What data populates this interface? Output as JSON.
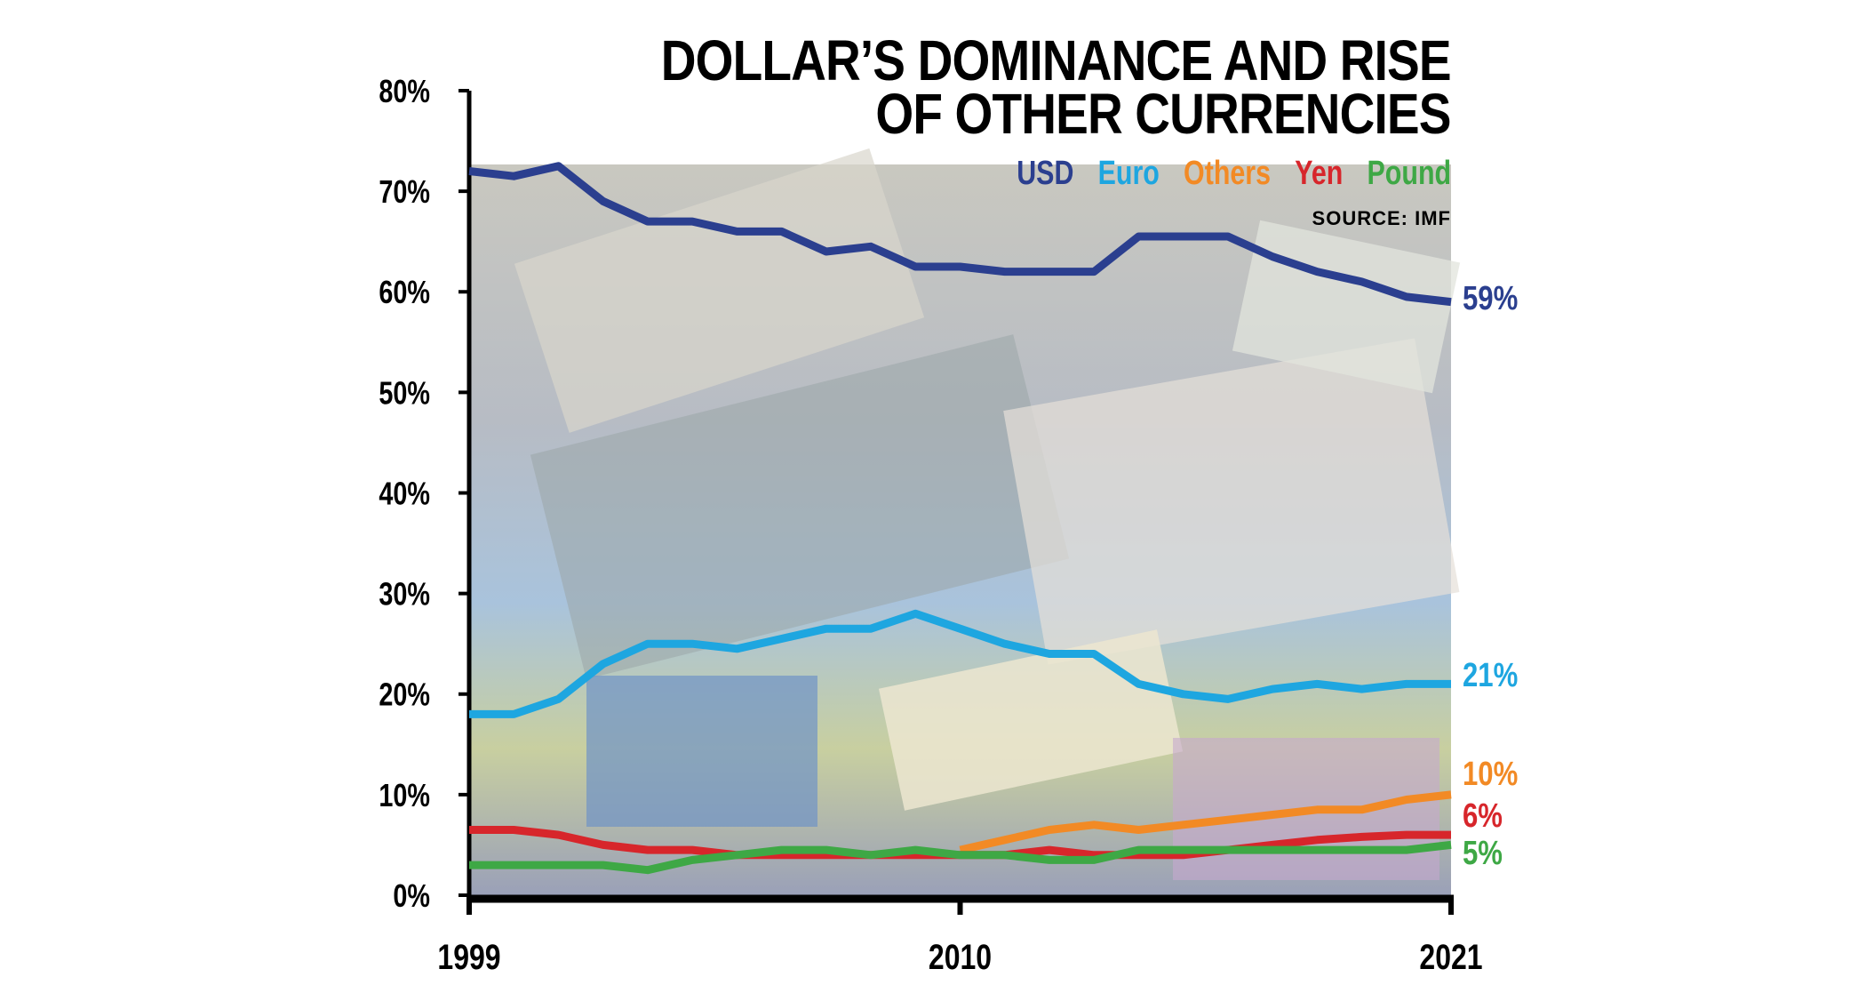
{
  "chart_data": {
    "type": "line",
    "title": "DOLLAR’S DOMINANCE AND RISE OF OTHER CURRENCIES",
    "title_lines": [
      "DOLLAR’S DOMINANCE AND RISE",
      "OF OTHER CURRENCIES"
    ],
    "source": "SOURCE: IMF",
    "xlabel": "",
    "ylabel": "",
    "xlim": [
      1999,
      2021
    ],
    "ylim": [
      0,
      80
    ],
    "x_ticks": [
      "1999",
      "2010",
      "2021"
    ],
    "y_ticks": [
      "0%",
      "10%",
      "20%",
      "30%",
      "40%",
      "50%",
      "60%",
      "70%",
      "80%"
    ],
    "grid": false,
    "legend_placement": "top-right",
    "x": [
      1999,
      2000,
      2001,
      2002,
      2003,
      2004,
      2005,
      2006,
      2007,
      2008,
      2009,
      2010,
      2011,
      2012,
      2013,
      2014,
      2015,
      2016,
      2017,
      2018,
      2019,
      2020,
      2021
    ],
    "series": [
      {
        "name": "USD",
        "color": "#2b3f8f",
        "end_label": "59%",
        "values": [
          72,
          71.5,
          72.5,
          69,
          67,
          67,
          66,
          66,
          64,
          64.5,
          62.5,
          62.5,
          62,
          62,
          62,
          65.5,
          65.5,
          65.5,
          63.5,
          62,
          61,
          59.5,
          59
        ]
      },
      {
        "name": "Euro",
        "color": "#1ea6e0",
        "end_label": "21%",
        "values": [
          18,
          18,
          19.5,
          23,
          25,
          25,
          24.5,
          25.5,
          26.5,
          26.5,
          28,
          26.5,
          25,
          24,
          24,
          21,
          20,
          19.5,
          20.5,
          21,
          20.5,
          21,
          21
        ]
      },
      {
        "name": "Others",
        "color": "#f28a25",
        "end_label": "10%",
        "values": [
          null,
          null,
          null,
          null,
          null,
          null,
          null,
          null,
          null,
          null,
          null,
          4.5,
          5.5,
          6.5,
          7,
          6.5,
          7,
          7.5,
          8,
          8.5,
          8.5,
          9.5,
          10
        ]
      },
      {
        "name": "Yen",
        "color": "#d7262b",
        "end_label": "6%",
        "values": [
          6.5,
          6.5,
          6,
          5,
          4.5,
          4.5,
          4,
          4,
          4,
          4,
          4,
          4,
          4,
          4.5,
          4,
          4,
          4,
          4.5,
          5,
          5.5,
          5.8,
          6,
          6
        ]
      },
      {
        "name": "Pound",
        "color": "#3ea845",
        "end_label": "5%",
        "values": [
          3,
          3,
          3,
          3,
          2.5,
          3.5,
          4,
          4.5,
          4.5,
          4,
          4.5,
          4,
          4,
          3.5,
          3.5,
          4.5,
          4.5,
          4.5,
          4.5,
          4.5,
          4.5,
          4.5,
          5
        ]
      }
    ]
  }
}
